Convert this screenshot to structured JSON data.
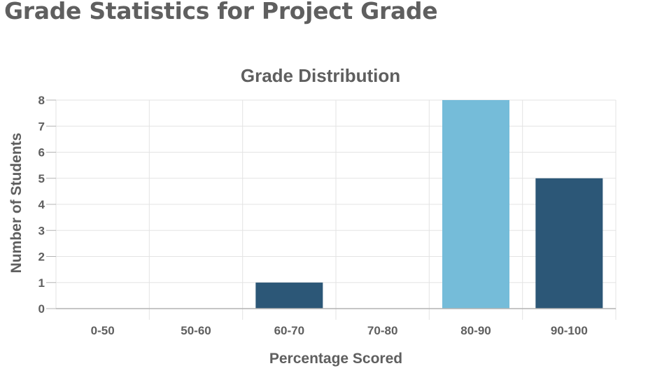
{
  "page": {
    "heading": "Grade Statistics for Project Grade"
  },
  "chart_data": {
    "type": "bar",
    "title": "Grade Distribution",
    "xlabel": "Percentage Scored",
    "ylabel": "Number of Students",
    "categories": [
      "0-50",
      "50-60",
      "60-70",
      "70-80",
      "80-90",
      "90-100"
    ],
    "values": [
      0,
      0,
      1,
      0,
      8,
      5
    ],
    "bar_colors": [
      "#2c5777",
      "#2c5777",
      "#2c5777",
      "#2c5777",
      "#75bcd9",
      "#2c5777"
    ],
    "ylim": [
      0,
      8
    ],
    "yticks": [
      "0",
      "1",
      "2",
      "3",
      "4",
      "5",
      "6",
      "7",
      "8"
    ],
    "grid": true,
    "legend": "none"
  },
  "colors": {
    "text": "#5f5f5f",
    "grid": "#e3e3e3",
    "axis": "#b3b3b3"
  }
}
